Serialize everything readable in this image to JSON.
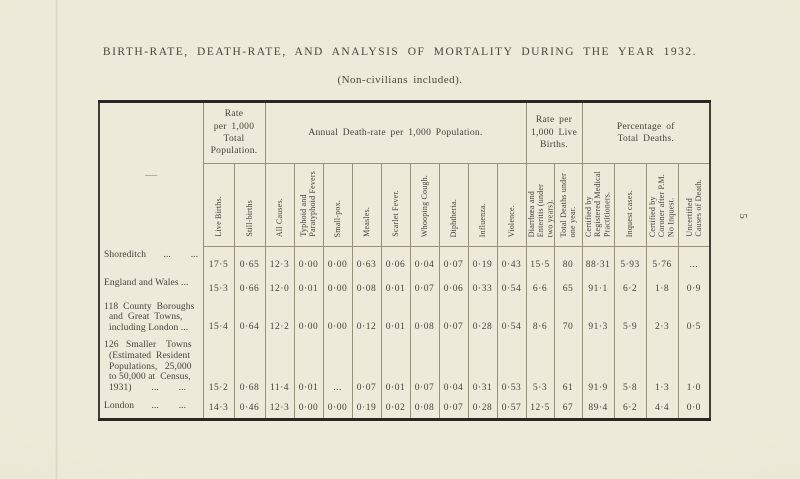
{
  "page": {
    "title": "BIRTH-RATE, DEATH-RATE, AND ANALYSIS OF MORTALITY DURING THE YEAR 1932.",
    "subtitle": "(Non-civilians included).",
    "page_number": "5",
    "paper_color": "#ece8d7",
    "ink_color": "#45413a",
    "rule_color": "#97917c",
    "heavy_rule_color": "#2c2821"
  },
  "table": {
    "corner_label": "—",
    "groups": [
      {
        "label": "Rate\nper 1,000\nTotal\nPopulation.",
        "span": 2
      },
      {
        "label": "Annual  Death-rate  per  1,000  Population.",
        "span": 9
      },
      {
        "label": "Rate per\n1,000 Live\nBirths.",
        "span": 2
      },
      {
        "label": "Percentage of\nTotal Deaths.",
        "span": 4
      }
    ],
    "columns": [
      "Live Births.",
      "Still-births",
      "All Causes.",
      "Typhoid and\nParatyphoid Fevers",
      "Small-pox.",
      "Measles.",
      "Scarlet Fever.",
      "Whooping Cough.",
      "Diphtheria.",
      "Influenza.",
      "Violence.",
      "Diarrhœa and\nEnteritis (under\ntwo years).",
      "Total Deaths under\none year.",
      "Certified by\nRegistered Medical\nPractitioners.",
      "Inquest cases.",
      "Certified by\nCoroner after P.M.\nNo Inquest.",
      "Uncertified\nCauses of Death."
    ],
    "rows": [
      {
        "label": "Shoreditch       ...        ...",
        "values": [
          "17·5",
          "0·65",
          "12·3",
          "0·00",
          "0·00",
          "0·63",
          "0·06",
          "0·04",
          "0·07",
          "0·19",
          "0·43",
          "15·5",
          "80",
          "88·31",
          "5·93",
          "5·76",
          "..."
        ]
      },
      {
        "label": "England and Wales ...",
        "values": [
          "15·3",
          "0·66",
          "12·0",
          "0·01",
          "0·00",
          "0·08",
          "0·01",
          "0·07",
          "0·06",
          "0·33",
          "0·54",
          "6·6",
          "65",
          "91·1",
          "6·2",
          "1·8",
          "0·9"
        ]
      },
      {
        "label": "118  County  Boroughs\n  and  Great  Towns,\n  including London ...",
        "values": [
          "15·4",
          "0·64",
          "12·2",
          "0·00",
          "0·00",
          "0·12",
          "0·01",
          "0·08",
          "0·07",
          "0·28",
          "0·54",
          "8·6",
          "70",
          "91·3",
          "5·9",
          "2·3",
          "0·5"
        ]
      },
      {
        "label": "126   Smaller    Towns\n  (Estimated  Resident\n  Populations,   25,000\n  to 50,000 at  Census,\n  1931)        ...        ...",
        "values": [
          "15·2",
          "0·68",
          "11·4",
          "0·01",
          "...",
          "0·07",
          "0·01",
          "0·07",
          "0·04",
          "0·31",
          "0·53",
          "5·3",
          "61",
          "91·9",
          "5·8",
          "1·3",
          "1·0"
        ]
      },
      {
        "label": "London       ...        ...",
        "values": [
          "14·3",
          "0·46",
          "12·3",
          "0·00",
          "0·00",
          "0·19",
          "0·02",
          "0·08",
          "0·07",
          "0·28",
          "0·57",
          "12·5",
          "67",
          "89·4",
          "6·2",
          "4·4",
          "0·0"
        ]
      }
    ]
  }
}
